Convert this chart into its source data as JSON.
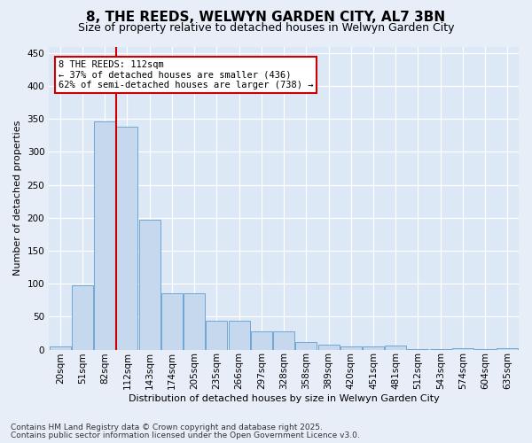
{
  "title": "8, THE REEDS, WELWYN GARDEN CITY, AL7 3BN",
  "subtitle": "Size of property relative to detached houses in Welwyn Garden City",
  "xlabel": "Distribution of detached houses by size in Welwyn Garden City",
  "ylabel": "Number of detached properties",
  "footnote1": "Contains HM Land Registry data © Crown copyright and database right 2025.",
  "footnote2": "Contains public sector information licensed under the Open Government Licence v3.0.",
  "categories": [
    "20sqm",
    "51sqm",
    "82sqm",
    "112sqm",
    "143sqm",
    "174sqm",
    "205sqm",
    "235sqm",
    "266sqm",
    "297sqm",
    "328sqm",
    "358sqm",
    "389sqm",
    "420sqm",
    "451sqm",
    "481sqm",
    "512sqm",
    "543sqm",
    "574sqm",
    "604sqm",
    "635sqm"
  ],
  "values": [
    5,
    98,
    347,
    338,
    197,
    85,
    85,
    44,
    44,
    28,
    28,
    11,
    8,
    5,
    5,
    6,
    1,
    1,
    2,
    1,
    2
  ],
  "bar_color": "#c5d8ee",
  "bar_edge_color": "#6fa8d4",
  "fig_bg_color": "#e8eef8",
  "ax_bg_color": "#dce8f5",
  "grid_color": "#ffffff",
  "red_line_index": 3,
  "annotation_line1": "8 THE REEDS: 112sqm",
  "annotation_line2": "← 37% of detached houses are smaller (436)",
  "annotation_line3": "62% of semi-detached houses are larger (738) →",
  "ylim": [
    0,
    460
  ],
  "yticks": [
    0,
    50,
    100,
    150,
    200,
    250,
    300,
    350,
    400,
    450
  ],
  "title_fontsize": 11,
  "subtitle_fontsize": 9,
  "ylabel_fontsize": 8,
  "xlabel_fontsize": 8,
  "tick_fontsize": 7.5,
  "annot_fontsize": 7.5,
  "footnote_fontsize": 6.5
}
